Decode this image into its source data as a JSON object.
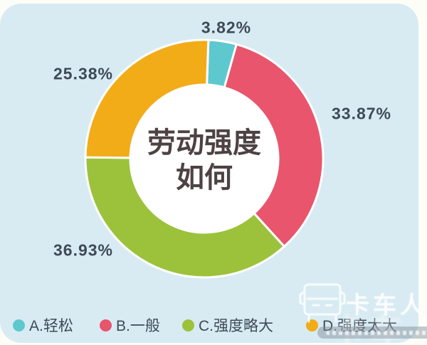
{
  "page": {
    "background": "#fdfdf7",
    "panel_color": "#d8ebf3"
  },
  "chart_data": {
    "type": "pie",
    "donut": true,
    "title": "劳动强度如何",
    "title_lines": [
      "劳动强度",
      "如何"
    ],
    "start_angle_deg": 2,
    "legend_position": "bottom",
    "slices": [
      {
        "label": "A.轻松",
        "value": 3.82,
        "pct_label": "3.82%",
        "color": "#5ec8cf"
      },
      {
        "label": "B.一般",
        "value": 33.87,
        "pct_label": "33.87%",
        "color": "#e8556d"
      },
      {
        "label": "C.强度略大",
        "value": 36.93,
        "pct_label": "36.93%",
        "color": "#9cc23b"
      },
      {
        "label": "D.强度太大",
        "value": 25.38,
        "pct_label": "25.38%",
        "color": "#f2ac18"
      }
    ]
  },
  "watermark": {
    "brand": "卡车人"
  }
}
